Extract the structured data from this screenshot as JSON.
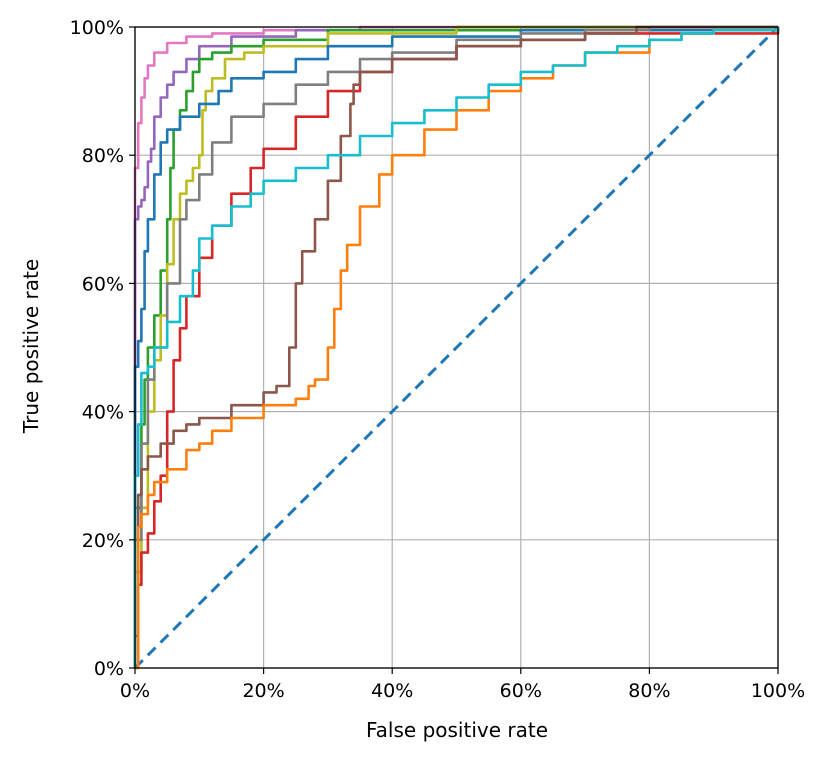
{
  "chart_data": {
    "type": "line",
    "title": "",
    "xlabel": "False positive rate",
    "ylabel": "True positive rate",
    "xlim": [
      0,
      1
    ],
    "ylim": [
      0,
      1
    ],
    "grid": true,
    "x_ticks": [
      0,
      0.2,
      0.4,
      0.6,
      0.8,
      1.0
    ],
    "y_ticks": [
      0,
      0.2,
      0.4,
      0.6,
      0.8,
      1.0
    ],
    "x_tick_labels": [
      "0%",
      "20%",
      "40%",
      "60%",
      "80%",
      "100%"
    ],
    "y_tick_labels": [
      "0%",
      "20%",
      "40%",
      "60%",
      "80%",
      "100%"
    ],
    "reference_line": {
      "x": [
        0,
        1
      ],
      "y": [
        0,
        1
      ],
      "color": "#1f77b4",
      "style": "dashed"
    },
    "series": [
      {
        "color": "#e377c2",
        "x": [
          0,
          0,
          0.005,
          0.01,
          0.015,
          0.02,
          0.03,
          0.05,
          0.08,
          0.12,
          0.2,
          0.35,
          1
        ],
        "y": [
          0,
          0.78,
          0.85,
          0.89,
          0.92,
          0.94,
          0.96,
          0.975,
          0.985,
          0.99,
          0.995,
          1,
          1
        ]
      },
      {
        "color": "#9467bd",
        "x": [
          0,
          0,
          0.005,
          0.01,
          0.015,
          0.02,
          0.025,
          0.03,
          0.04,
          0.05,
          0.06,
          0.08,
          0.1,
          0.15,
          0.25,
          0.5,
          1
        ],
        "y": [
          0,
          0.7,
          0.72,
          0.73,
          0.75,
          0.79,
          0.81,
          0.86,
          0.89,
          0.91,
          0.93,
          0.95,
          0.97,
          0.985,
          0.995,
          1,
          1
        ]
      },
      {
        "color": "#2ca02c",
        "x": [
          0,
          0,
          0.01,
          0.015,
          0.02,
          0.03,
          0.04,
          0.05,
          0.055,
          0.06,
          0.07,
          0.08,
          0.09,
          0.1,
          0.12,
          0.15,
          0.2,
          0.3,
          1
        ],
        "y": [
          0,
          0.25,
          0.38,
          0.45,
          0.5,
          0.55,
          0.62,
          0.7,
          0.78,
          0.84,
          0.87,
          0.9,
          0.93,
          0.95,
          0.96,
          0.97,
          0.98,
          0.995,
          1
        ]
      },
      {
        "color": "#bcbd22",
        "x": [
          0,
          0,
          0.01,
          0.02,
          0.03,
          0.04,
          0.05,
          0.06,
          0.07,
          0.08,
          0.09,
          0.1,
          0.105,
          0.11,
          0.12,
          0.14,
          0.17,
          0.2,
          0.3,
          0.5,
          1
        ],
        "y": [
          0,
          0.15,
          0.25,
          0.4,
          0.48,
          0.55,
          0.63,
          0.7,
          0.74,
          0.76,
          0.78,
          0.8,
          0.87,
          0.9,
          0.92,
          0.95,
          0.96,
          0.97,
          0.99,
          1,
          1
        ]
      },
      {
        "color": "#1f77b4",
        "x": [
          0,
          0,
          0.005,
          0.01,
          0.015,
          0.02,
          0.03,
          0.04,
          0.05,
          0.07,
          0.1,
          0.13,
          0.15,
          0.2,
          0.25,
          0.3,
          0.4,
          0.6,
          1
        ],
        "y": [
          0,
          0.47,
          0.51,
          0.56,
          0.65,
          0.7,
          0.77,
          0.82,
          0.84,
          0.86,
          0.88,
          0.9,
          0.92,
          0.93,
          0.95,
          0.97,
          0.985,
          0.995,
          1
        ]
      },
      {
        "color": "#7f7f7f",
        "x": [
          0,
          0,
          0.01,
          0.02,
          0.03,
          0.05,
          0.07,
          0.08,
          0.1,
          0.12,
          0.15,
          0.2,
          0.25,
          0.3,
          0.35,
          0.4,
          0.5,
          0.6,
          0.7,
          0.8,
          1
        ],
        "y": [
          0,
          0.2,
          0.35,
          0.45,
          0.5,
          0.6,
          0.7,
          0.73,
          0.77,
          0.82,
          0.86,
          0.88,
          0.91,
          0.93,
          0.95,
          0.96,
          0.98,
          0.99,
          0.995,
          1,
          1
        ]
      },
      {
        "color": "#d62728",
        "x": [
          0,
          0,
          0.005,
          0.01,
          0.02,
          0.03,
          0.04,
          0.05,
          0.06,
          0.07,
          0.08,
          0.1,
          0.12,
          0.15,
          0.18,
          0.2,
          0.25,
          0.3,
          0.35,
          0.4,
          0.5,
          0.6,
          0.7,
          1
        ],
        "y": [
          0,
          0.05,
          0.13,
          0.18,
          0.21,
          0.26,
          0.3,
          0.4,
          0.48,
          0.53,
          0.58,
          0.64,
          0.69,
          0.74,
          0.78,
          0.81,
          0.86,
          0.9,
          0.93,
          0.95,
          0.97,
          0.98,
          0.99,
          1
        ]
      },
      {
        "color": "#8c564b",
        "x": [
          0,
          0,
          0.005,
          0.01,
          0.02,
          0.04,
          0.06,
          0.08,
          0.1,
          0.15,
          0.2,
          0.22,
          0.24,
          0.25,
          0.26,
          0.28,
          0.3,
          0.32,
          0.335,
          0.34,
          0.35,
          0.4,
          0.5,
          0.6,
          0.7,
          0.78,
          1
        ],
        "y": [
          0,
          0.2,
          0.27,
          0.31,
          0.33,
          0.35,
          0.37,
          0.38,
          0.39,
          0.41,
          0.43,
          0.44,
          0.5,
          0.6,
          0.65,
          0.7,
          0.76,
          0.83,
          0.88,
          0.91,
          0.93,
          0.95,
          0.97,
          0.98,
          0.99,
          1,
          1
        ]
      },
      {
        "color": "#ff7f0e",
        "x": [
          0,
          0.005,
          0.01,
          0.02,
          0.03,
          0.05,
          0.08,
          0.1,
          0.12,
          0.15,
          0.2,
          0.25,
          0.27,
          0.28,
          0.3,
          0.31,
          0.32,
          0.33,
          0.35,
          0.38,
          0.4,
          0.45,
          0.5,
          0.55,
          0.6,
          0.65,
          0.7,
          0.8,
          0.85,
          0.9,
          1
        ],
        "y": [
          0,
          0.22,
          0.24,
          0.27,
          0.29,
          0.31,
          0.34,
          0.35,
          0.37,
          0.39,
          0.41,
          0.42,
          0.44,
          0.45,
          0.5,
          0.56,
          0.62,
          0.66,
          0.72,
          0.77,
          0.8,
          0.84,
          0.87,
          0.9,
          0.92,
          0.94,
          0.96,
          0.98,
          0.99,
          0.995,
          1
        ]
      },
      {
        "color": "#17becf",
        "x": [
          0,
          0,
          0.005,
          0.01,
          0.02,
          0.03,
          0.05,
          0.07,
          0.09,
          0.1,
          0.12,
          0.15,
          0.18,
          0.2,
          0.25,
          0.3,
          0.35,
          0.4,
          0.45,
          0.5,
          0.55,
          0.6,
          0.65,
          0.7,
          0.75,
          0.8,
          0.85,
          0.9,
          1
        ],
        "y": [
          0,
          0.3,
          0.38,
          0.46,
          0.47,
          0.5,
          0.54,
          0.58,
          0.62,
          0.67,
          0.69,
          0.72,
          0.74,
          0.76,
          0.78,
          0.8,
          0.83,
          0.85,
          0.87,
          0.89,
          0.91,
          0.93,
          0.94,
          0.96,
          0.97,
          0.98,
          0.99,
          0.995,
          1
        ]
      }
    ]
  }
}
